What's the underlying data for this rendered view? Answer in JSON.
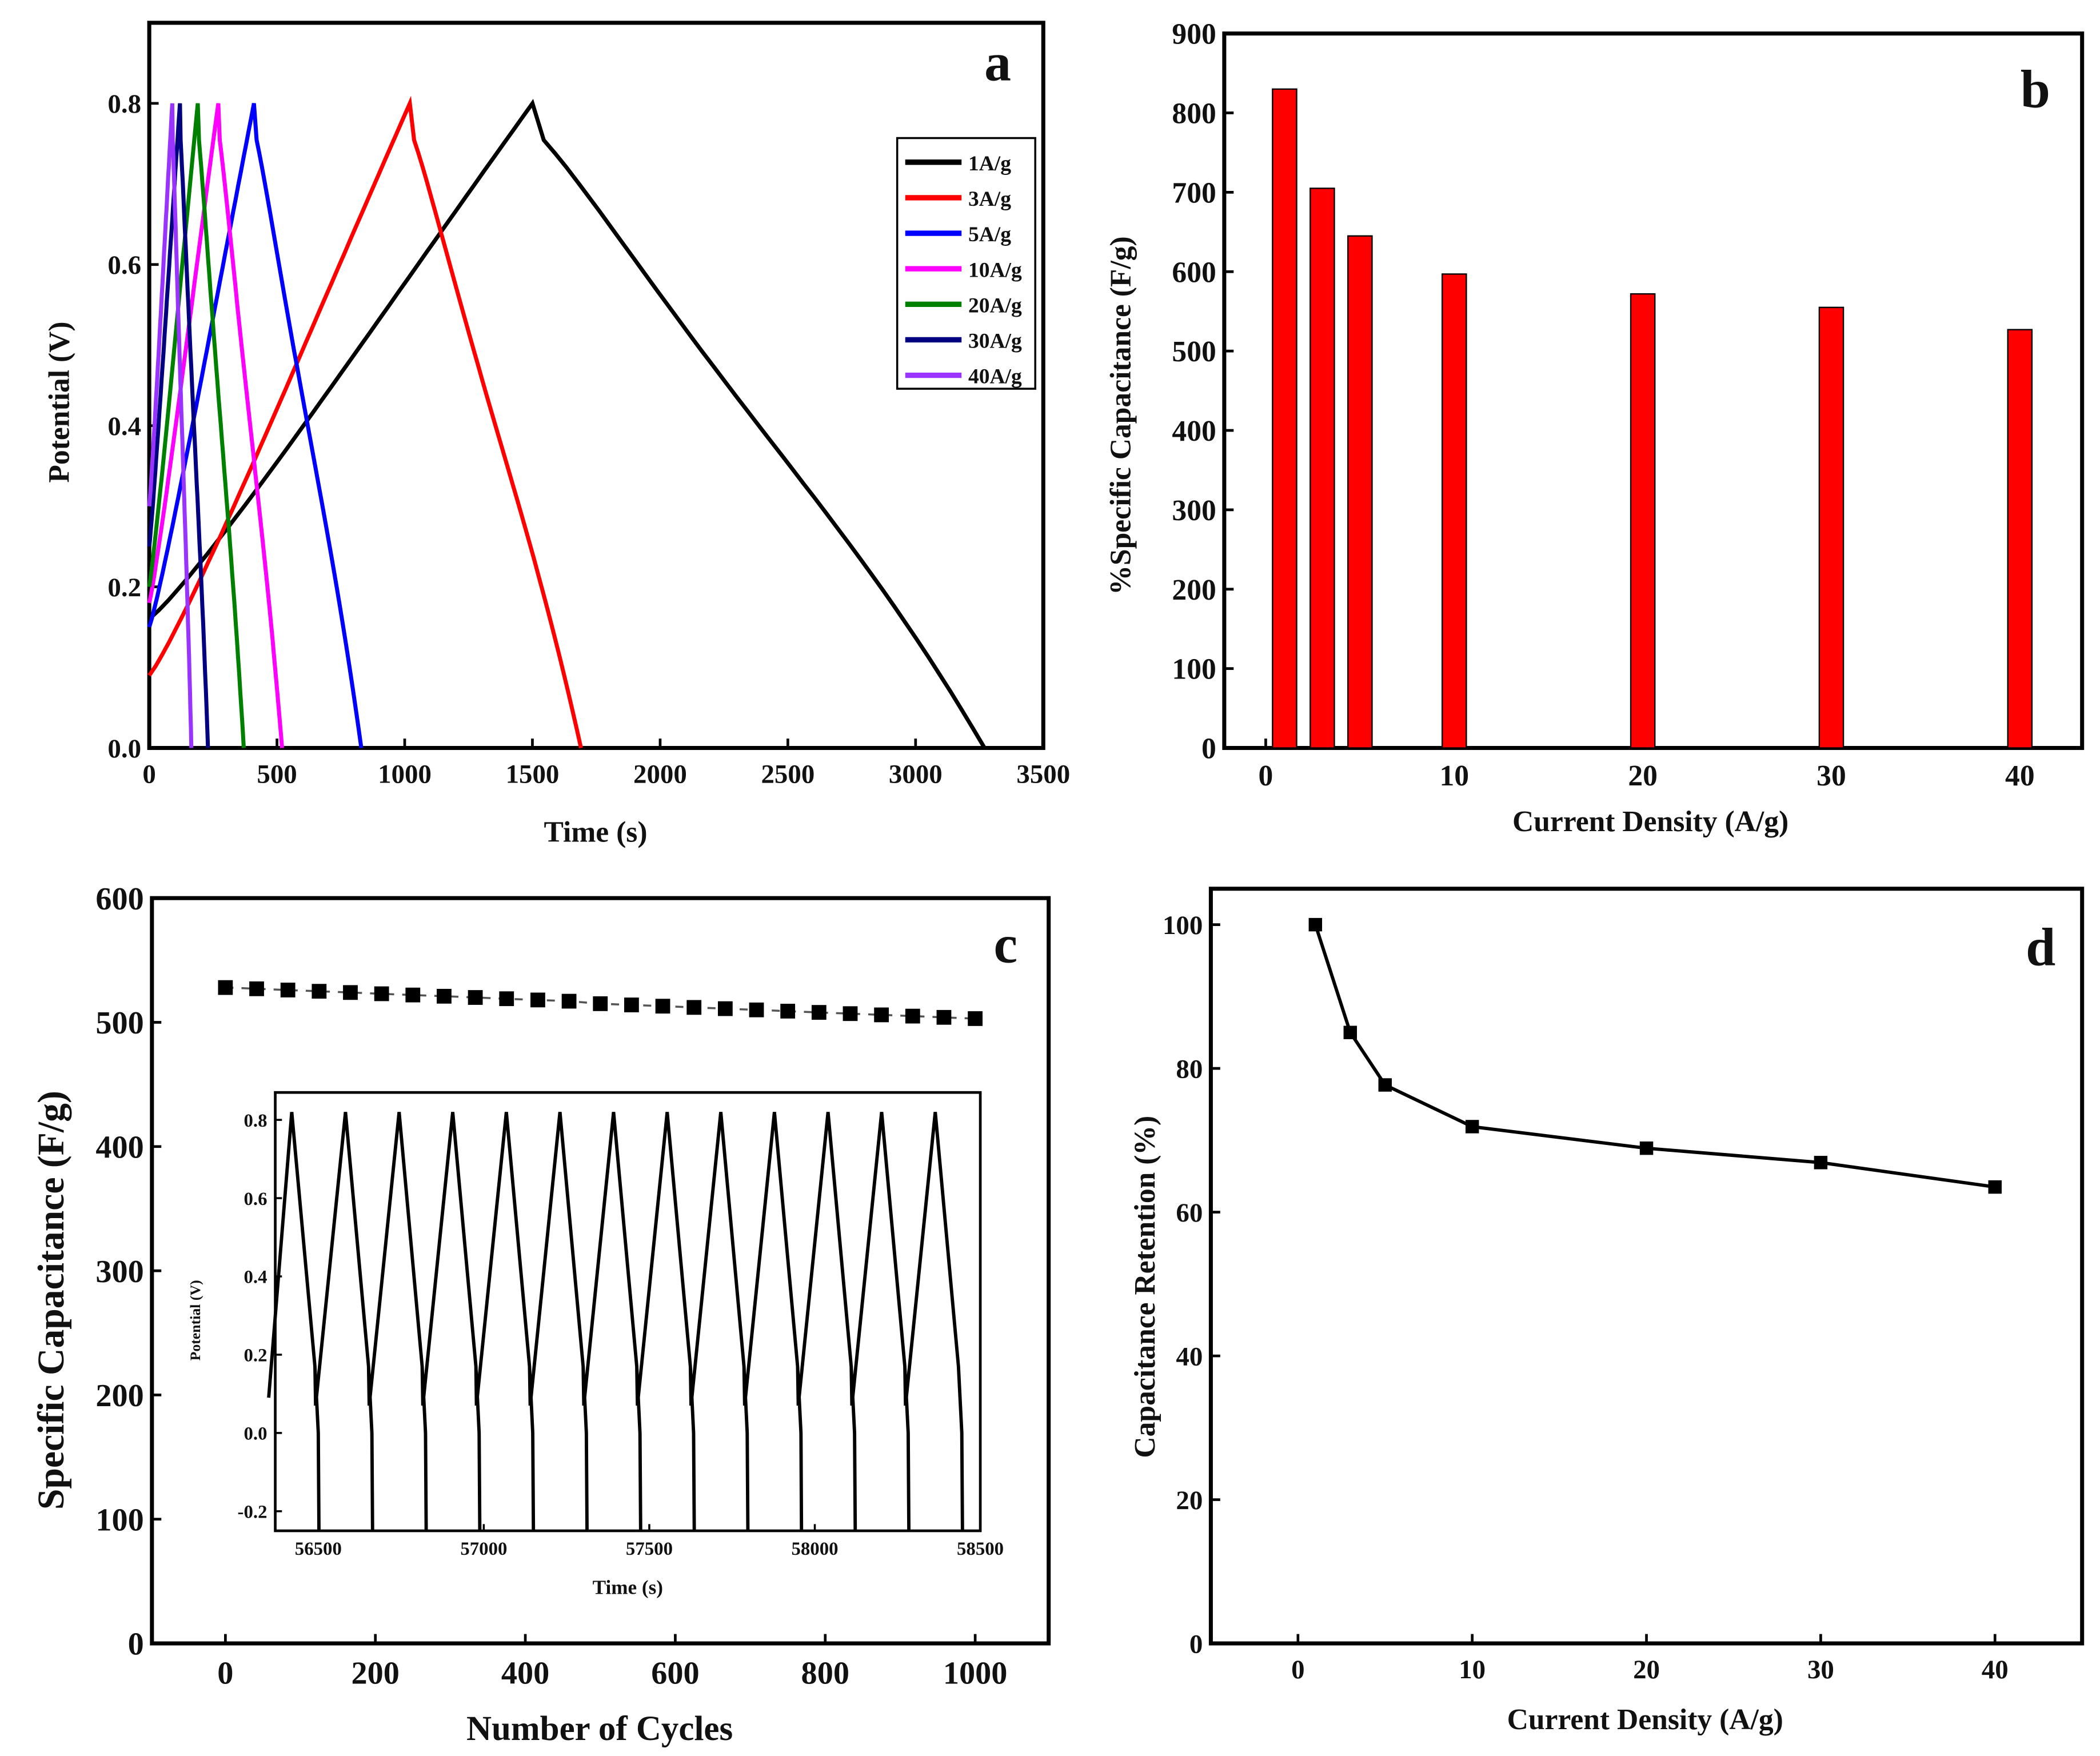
{
  "chart_data": [
    {
      "panel": "a",
      "type": "line",
      "xlabel": "Time (s)",
      "ylabel": "Potential (V)",
      "xlim": [
        0,
        3500
      ],
      "ylim": [
        0,
        0.9
      ],
      "xticks": [
        0,
        500,
        1000,
        1500,
        2000,
        2500,
        3000,
        3500
      ],
      "yticks": [
        0.0,
        0.2,
        0.4,
        0.6,
        0.8
      ],
      "legend_position": "top-right",
      "series": [
        {
          "name": "1A/g",
          "color": "#000000",
          "start_v": 0.16,
          "peak_v": 0.8,
          "charge_end_s": 1500,
          "discharge_end_s": 3270
        },
        {
          "name": "3A/g",
          "color": "#ff0000",
          "start_v": 0.09,
          "peak_v": 0.8,
          "charge_end_s": 1020,
          "discharge_end_s": 1690
        },
        {
          "name": "5A/g",
          "color": "#0000ff",
          "start_v": 0.15,
          "peak_v": 0.8,
          "charge_end_s": 410,
          "discharge_end_s": 830
        },
        {
          "name": "10A/g",
          "color": "#ff00ff",
          "start_v": 0.18,
          "peak_v": 0.8,
          "charge_end_s": 270,
          "discharge_end_s": 520
        },
        {
          "name": "20A/g",
          "color": "#008000",
          "start_v": 0.2,
          "peak_v": 0.8,
          "charge_end_s": 190,
          "discharge_end_s": 370
        },
        {
          "name": "30A/g",
          "color": "#000080",
          "start_v": 0.25,
          "peak_v": 0.8,
          "charge_end_s": 120,
          "discharge_end_s": 230
        },
        {
          "name": "40A/g",
          "color": "#9933ff",
          "start_v": 0.3,
          "peak_v": 0.8,
          "charge_end_s": 90,
          "discharge_end_s": 165
        }
      ]
    },
    {
      "panel": "b",
      "type": "bar",
      "xlabel": "Current Density (A/g)",
      "ylabel": "%Specific Capacitance (F/g)",
      "xlim": [
        -2.2,
        43.3
      ],
      "ylim": [
        0,
        900
      ],
      "xticks": [
        0,
        10,
        20,
        30,
        40
      ],
      "yticks": [
        0,
        100,
        200,
        300,
        400,
        500,
        600,
        700,
        800,
        900
      ],
      "x": [
        1,
        3,
        5,
        10,
        20,
        30,
        40
      ],
      "values": [
        830,
        705,
        645,
        597,
        572,
        555,
        527
      ],
      "color": "#ff0000"
    },
    {
      "panel": "c",
      "type": "scatter",
      "xlabel": "Number of Cycles",
      "ylabel": "Specific Capacitance (F/g)",
      "xlim": [
        -98,
        1098
      ],
      "ylim": [
        0,
        600
      ],
      "xticks": [
        0,
        200,
        400,
        600,
        800,
        1000
      ],
      "yticks": [
        0,
        100,
        200,
        300,
        400,
        500,
        600
      ],
      "x_start": 0,
      "x_end": 1000,
      "count": 25,
      "values": [
        528,
        527,
        526,
        525,
        524,
        523,
        522,
        521,
        520,
        519,
        518,
        517,
        515,
        514,
        513,
        512,
        511,
        510,
        509,
        508,
        507,
        506,
        505,
        504,
        503
      ],
      "inset": {
        "type": "line",
        "xlabel": "Time (s)",
        "ylabel": "Potential (V)",
        "xlim": [
          56370,
          58500
        ],
        "ylim": [
          -0.25,
          0.87
        ],
        "xticks": [
          56500,
          57000,
          57500,
          58000,
          58500
        ],
        "yticks": [
          "0.8",
          "0.6",
          "0.4",
          "0.2",
          "0.0",
          "-0.2"
        ],
        "cycles": 13,
        "first_peak_s": 56420,
        "period_s": 162,
        "peak_v": 0.82,
        "min_v": 0.07,
        "cutoff_v": -0.25
      }
    },
    {
      "panel": "d",
      "type": "line",
      "xlabel": "Current Density (A/g)",
      "ylabel": "Capacitance Retention (%)",
      "xlim": [
        -5,
        45
      ],
      "ylim": [
        0,
        105
      ],
      "xticks": [
        0,
        10,
        20,
        30,
        40
      ],
      "yticks": [
        0,
        20,
        40,
        60,
        80,
        100
      ],
      "x": [
        1,
        3,
        5,
        10,
        20,
        30,
        40
      ],
      "values": [
        100,
        85,
        77.7,
        71.9,
        68.9,
        66.9,
        63.5
      ]
    }
  ],
  "labels": {
    "a": "a",
    "b": "b",
    "c": "c",
    "d": "d"
  }
}
